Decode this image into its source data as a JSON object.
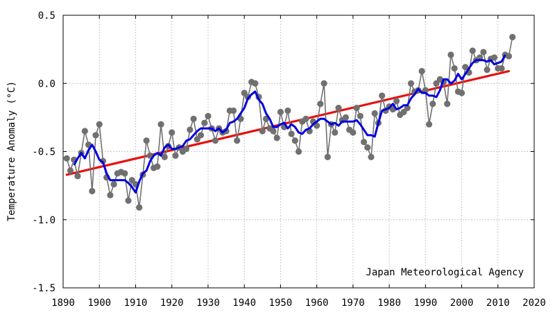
{
  "chart_data": {
    "type": "line",
    "ylabel": "Temperature Anomaly (°C)",
    "credit": "Japan Meteorological Agency",
    "xlim": [
      1890,
      2020
    ],
    "ylim": [
      -1.5,
      0.5
    ],
    "xticks": [
      1890,
      1900,
      1910,
      1920,
      1930,
      1940,
      1950,
      1960,
      1970,
      1980,
      1990,
      2000,
      2010,
      2020
    ],
    "yticks": [
      {
        "value": 0.5,
        "label": "0.5"
      },
      {
        "value": 0.0,
        "label": "0.0"
      },
      {
        "value": -0.5,
        "label": "-0.5"
      },
      {
        "value": -1.0,
        "label": "-1.0"
      },
      {
        "value": -1.5,
        "label": "-1.5"
      }
    ],
    "grid": true,
    "colors": {
      "annual": "#707070",
      "moving_average": "#0000e0",
      "trend": "#e81010"
    },
    "series": [
      {
        "style": "line-with-markers",
        "x": [
          1891,
          1892,
          1893,
          1894,
          1895,
          1896,
          1897,
          1898,
          1899,
          1900,
          1901,
          1902,
          1903,
          1904,
          1905,
          1906,
          1907,
          1908,
          1909,
          1910,
          1911,
          1912,
          1913,
          1914,
          1915,
          1916,
          1917,
          1918,
          1919,
          1920,
          1921,
          1922,
          1923,
          1924,
          1925,
          1926,
          1927,
          1928,
          1929,
          1930,
          1931,
          1932,
          1933,
          1934,
          1935,
          1936,
          1937,
          1938,
          1939,
          1940,
          1941,
          1942,
          1943,
          1944,
          1945,
          1946,
          1947,
          1948,
          1949,
          1950,
          1951,
          1952,
          1953,
          1954,
          1955,
          1956,
          1957,
          1958,
          1959,
          1960,
          1961,
          1962,
          1963,
          1964,
          1965,
          1966,
          1967,
          1968,
          1969,
          1970,
          1971,
          1972,
          1973,
          1974,
          1975,
          1976,
          1977,
          1978,
          1979,
          1980,
          1981,
          1982,
          1983,
          1984,
          1985,
          1986,
          1987,
          1988,
          1989,
          1990,
          1991,
          1992,
          1993,
          1994,
          1995,
          1996,
          1997,
          1998,
          1999,
          2000,
          2001,
          2002,
          2003,
          2004,
          2005,
          2006,
          2007,
          2008,
          2009,
          2010,
          2011,
          2012,
          2013,
          2014
        ],
        "values": [
          -0.55,
          -0.64,
          -0.56,
          -0.68,
          -0.51,
          -0.35,
          -0.45,
          -0.79,
          -0.38,
          -0.3,
          -0.57,
          -0.69,
          -0.82,
          -0.74,
          -0.66,
          -0.65,
          -0.66,
          -0.86,
          -0.71,
          -0.74,
          -0.91,
          -0.67,
          -0.42,
          -0.53,
          -0.62,
          -0.61,
          -0.3,
          -0.54,
          -0.46,
          -0.36,
          -0.53,
          -0.47,
          -0.5,
          -0.48,
          -0.34,
          -0.26,
          -0.41,
          -0.38,
          -0.29,
          -0.24,
          -0.33,
          -0.42,
          -0.33,
          -0.36,
          -0.35,
          -0.2,
          -0.2,
          -0.42,
          -0.26,
          -0.07,
          -0.1,
          0.01,
          0.0,
          -0.1,
          -0.35,
          -0.26,
          -0.33,
          -0.35,
          -0.4,
          -0.21,
          -0.32,
          -0.2,
          -0.37,
          -0.42,
          -0.5,
          -0.28,
          -0.26,
          -0.35,
          -0.28,
          -0.31,
          -0.15,
          0.0,
          -0.54,
          -0.3,
          -0.36,
          -0.18,
          -0.27,
          -0.25,
          -0.34,
          -0.36,
          -0.18,
          -0.24,
          -0.43,
          -0.47,
          -0.54,
          -0.22,
          -0.29,
          -0.09,
          -0.2,
          -0.17,
          -0.19,
          -0.13,
          -0.23,
          -0.21,
          -0.18,
          0.0,
          -0.06,
          -0.05,
          0.09,
          -0.05,
          -0.3,
          -0.15,
          0.0,
          0.03,
          0.01,
          -0.15,
          0.21,
          0.11,
          -0.06,
          -0.07,
          0.12,
          0.08,
          0.24,
          0.17,
          0.19,
          0.23,
          0.1,
          0.18,
          0.19,
          0.11,
          0.11,
          0.21,
          0.2,
          0.34
        ]
      },
      {
        "style": "line",
        "x": [
          1893,
          1894,
          1895,
          1896,
          1897,
          1898,
          1899,
          1900,
          1901,
          1902,
          1903,
          1904,
          1905,
          1906,
          1907,
          1908,
          1909,
          1910,
          1911,
          1912,
          1913,
          1914,
          1915,
          1916,
          1917,
          1918,
          1919,
          1920,
          1921,
          1922,
          1923,
          1924,
          1925,
          1926,
          1927,
          1928,
          1929,
          1930,
          1931,
          1932,
          1933,
          1934,
          1935,
          1936,
          1937,
          1938,
          1939,
          1940,
          1941,
          1942,
          1943,
          1944,
          1945,
          1946,
          1947,
          1948,
          1949,
          1950,
          1951,
          1952,
          1953,
          1954,
          1955,
          1956,
          1957,
          1958,
          1959,
          1960,
          1961,
          1962,
          1963,
          1964,
          1965,
          1966,
          1967,
          1968,
          1969,
          1970,
          1971,
          1972,
          1973,
          1974,
          1975,
          1976,
          1977,
          1978,
          1979,
          1980,
          1981,
          1982,
          1983,
          1984,
          1985,
          1986,
          1987,
          1988,
          1989,
          1990,
          1991,
          1992,
          1993,
          1994,
          1995,
          1996,
          1997,
          1998,
          1999,
          2000,
          2001,
          2002,
          2003,
          2004,
          2005,
          2006,
          2007,
          2008,
          2009,
          2010,
          2011,
          2012
        ],
        "values": [
          -0.6,
          -0.55,
          -0.51,
          -0.55,
          -0.49,
          -0.45,
          -0.5,
          -0.56,
          -0.58,
          -0.66,
          -0.71,
          -0.71,
          -0.71,
          -0.71,
          -0.71,
          -0.73,
          -0.76,
          -0.8,
          -0.72,
          -0.66,
          -0.64,
          -0.57,
          -0.53,
          -0.51,
          -0.53,
          -0.47,
          -0.45,
          -0.48,
          -0.48,
          -0.47,
          -0.46,
          -0.42,
          -0.41,
          -0.38,
          -0.35,
          -0.33,
          -0.33,
          -0.33,
          -0.33,
          -0.35,
          -0.33,
          -0.36,
          -0.34,
          -0.29,
          -0.28,
          -0.26,
          -0.22,
          -0.18,
          -0.11,
          -0.08,
          -0.06,
          -0.12,
          -0.15,
          -0.22,
          -0.26,
          -0.32,
          -0.32,
          -0.3,
          -0.29,
          -0.33,
          -0.3,
          -0.32,
          -0.36,
          -0.37,
          -0.34,
          -0.33,
          -0.3,
          -0.28,
          -0.26,
          -0.26,
          -0.28,
          -0.3,
          -0.29,
          -0.31,
          -0.28,
          -0.28,
          -0.28,
          -0.28,
          -0.27,
          -0.3,
          -0.34,
          -0.38,
          -0.38,
          -0.39,
          -0.29,
          -0.2,
          -0.19,
          -0.18,
          -0.15,
          -0.19,
          -0.18,
          -0.16,
          -0.16,
          -0.11,
          -0.08,
          -0.04,
          -0.07,
          -0.07,
          -0.09,
          -0.09,
          -0.1,
          -0.05,
          0.03,
          0.03,
          0.0,
          0.02,
          0.07,
          0.03,
          0.07,
          0.11,
          0.15,
          0.17,
          0.17,
          0.17,
          0.16,
          0.17,
          0.14,
          0.15,
          0.16,
          0.21
        ]
      },
      {
        "style": "trend-line",
        "x": [
          1891,
          2013
        ],
        "values": [
          -0.67,
          0.09
        ]
      }
    ]
  }
}
